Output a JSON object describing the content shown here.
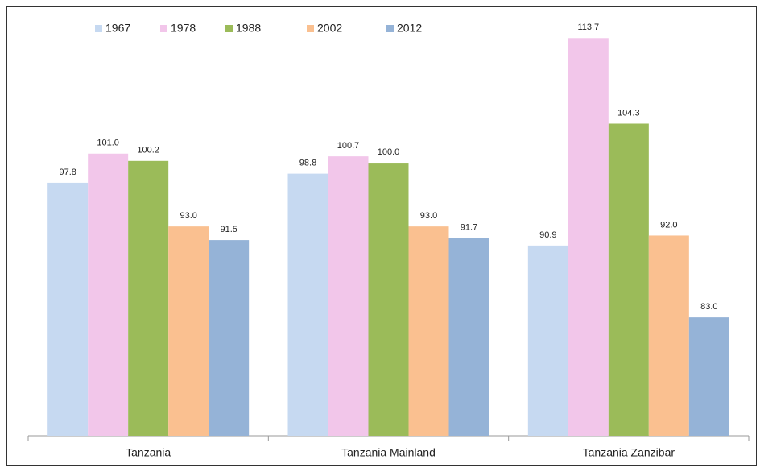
{
  "chart_data": {
    "type": "bar",
    "categories": [
      "Tanzania",
      "Tanzania Mainland",
      "Tanzania Zanzibar"
    ],
    "series": [
      {
        "name": "1967",
        "color": "#c6d9f1",
        "values": [
          97.8,
          98.8,
          90.9
        ],
        "value_labels": [
          "97.8",
          "98.8",
          "90.9"
        ]
      },
      {
        "name": "1978",
        "color": "#f2c6ea",
        "values": [
          101.0,
          100.7,
          113.7
        ],
        "value_labels": [
          "101.0",
          "100.7",
          "113.7"
        ]
      },
      {
        "name": "1988",
        "color": "#9bbb59",
        "values": [
          100.2,
          100.0,
          104.3
        ],
        "value_labels": [
          "100.2",
          "100.0",
          "104.3"
        ]
      },
      {
        "name": "2002",
        "color": "#fac090",
        "values": [
          93.0,
          93.0,
          92.0
        ],
        "value_labels": [
          "93.0",
          "93.0",
          "92.0"
        ]
      },
      {
        "name": "2012",
        "color": "#95b3d7",
        "values": [
          91.5,
          91.7,
          83.0
        ],
        "value_labels": [
          "91.5",
          "91.7",
          "83.0"
        ]
      }
    ],
    "ylim": [
      70,
      117
    ],
    "legend": "top",
    "grid": false
  }
}
